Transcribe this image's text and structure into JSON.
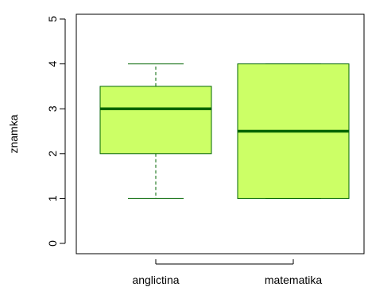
{
  "chart_data": {
    "type": "boxplot",
    "title": "",
    "xlabel": "",
    "ylabel": "znamka",
    "ylim": [
      0,
      5
    ],
    "yticks": [
      "0",
      "1",
      "2",
      "3",
      "4",
      "5"
    ],
    "categories": [
      "anglictina",
      "matematika"
    ],
    "boxes": [
      {
        "category": "anglictina",
        "min": 1,
        "q1": 2,
        "median": 3,
        "q3": 3.5,
        "max": 4
      },
      {
        "category": "matematika",
        "min": 1,
        "q1": 1,
        "median": 2.5,
        "q3": 4,
        "max": 4
      }
    ],
    "grid": false,
    "legend": "none",
    "colors": {
      "box_fill": "#ccff66",
      "box_stroke": "#006400",
      "median": "#006400",
      "whisker": "#006400",
      "axis": "#000000"
    }
  }
}
